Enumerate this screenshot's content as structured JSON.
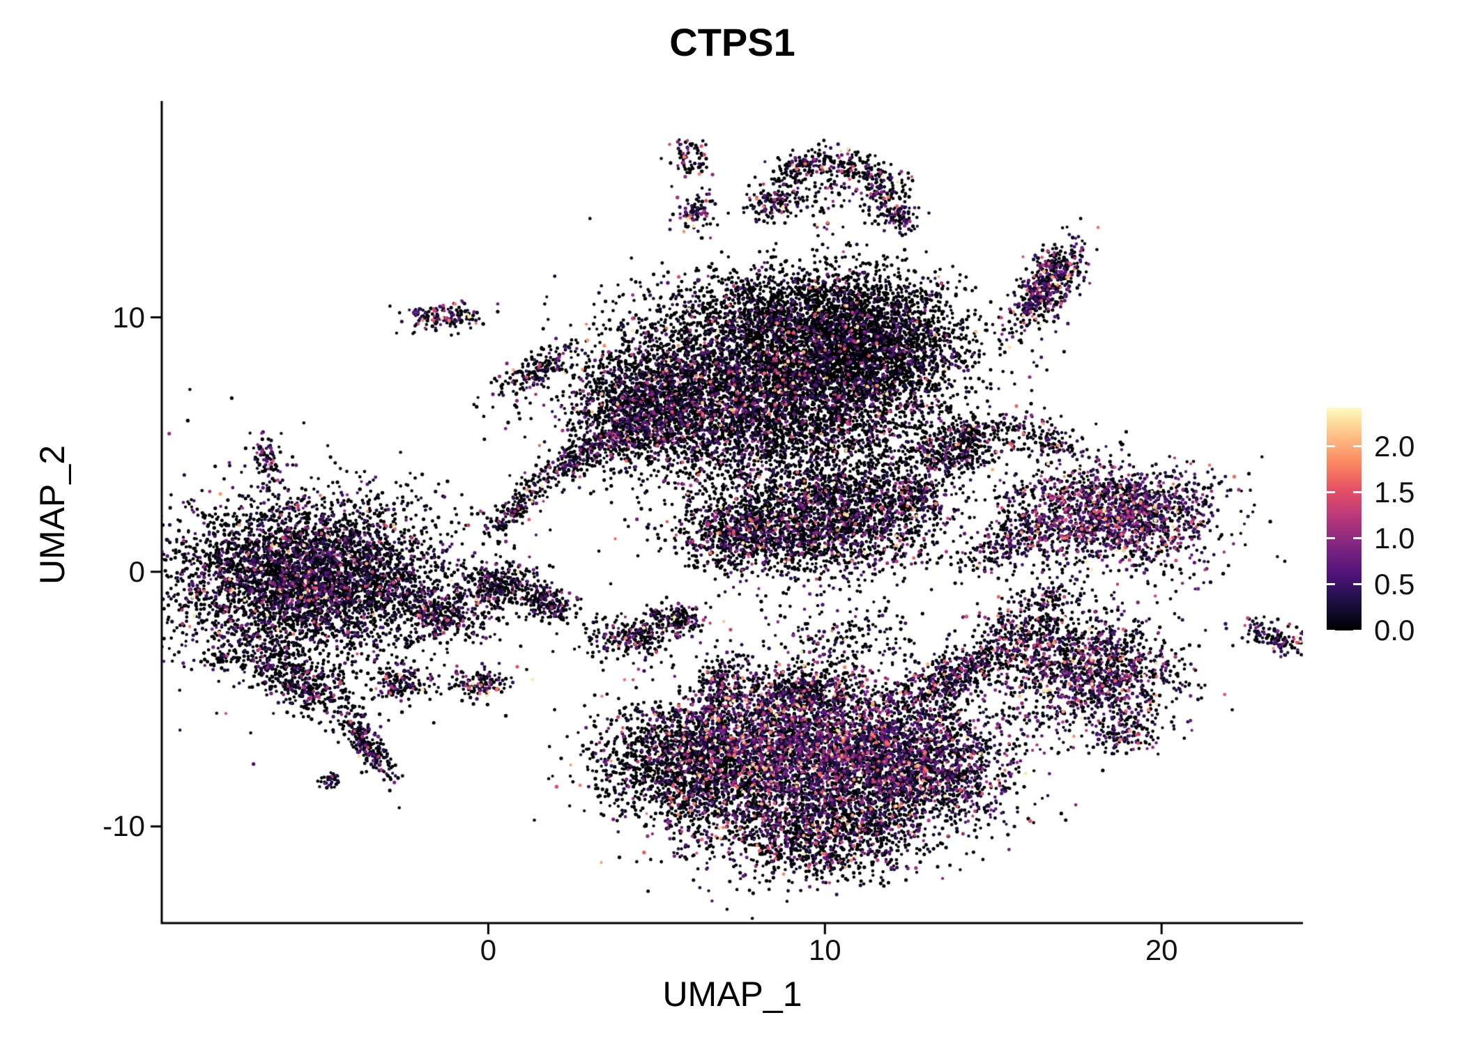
{
  "title": "CTPS1",
  "axes": {
    "x": {
      "label": "UMAP_1",
      "tick_labels": [
        "0",
        "10",
        "20"
      ],
      "tick_values": [
        0,
        10,
        20
      ]
    },
    "y": {
      "label": "UMAP_2",
      "tick_labels": [
        "-10",
        "0",
        "10"
      ],
      "tick_values": [
        -10,
        0,
        10
      ]
    }
  },
  "legend": {
    "tick_labels": [
      "2.0",
      "1.5",
      "1.0",
      "0.5",
      "0.0"
    ],
    "tick_values": [
      2.0,
      1.5,
      1.0,
      0.5,
      0.0
    ],
    "min_value": 0,
    "max_value": 2.42,
    "colormap": "magma"
  },
  "chart_data": {
    "type": "scatter",
    "title": "CTPS1",
    "xlabel": "UMAP_1",
    "ylabel": "UMAP_2",
    "xlim": [
      -9.7,
      24.2
    ],
    "ylim": [
      -13.8,
      18.5
    ],
    "x_ticks": [
      0,
      10,
      20
    ],
    "y_ticks": [
      -10,
      0,
      10
    ],
    "grid": false,
    "legend_position": "right",
    "color_scale": {
      "min": 0,
      "max": 2.42,
      "stops": [
        "#000004",
        "#1c1044",
        "#4f127b",
        "#812581",
        "#b5367a",
        "#e55064",
        "#fb8761",
        "#fec287",
        "#fcfdbf"
      ]
    },
    "cluster_fields": [
      "center_x",
      "center_y",
      "sd_x",
      "sd_y",
      "rot_deg",
      "n_points",
      "expressing_fraction",
      "expression_scale"
    ],
    "clusters": [
      [
        -5.3,
        -0.2,
        2.0,
        1.5,
        0,
        3800,
        0.28,
        0.45
      ],
      [
        -5.0,
        -0.5,
        2.8,
        2.1,
        0,
        900,
        0.2,
        0.4
      ],
      [
        -5.6,
        -4.3,
        1.1,
        0.45,
        -41,
        450,
        0.25,
        0.4
      ],
      [
        -3.6,
        -6.8,
        0.75,
        0.22,
        -62,
        220,
        0.3,
        0.4
      ],
      [
        -2.6,
        -4.35,
        0.45,
        0.3,
        0,
        140,
        0.35,
        0.5
      ],
      [
        -7.9,
        -3.4,
        0.18,
        0.14,
        0,
        30,
        0.25,
        0.4
      ],
      [
        -4.7,
        -8.2,
        0.2,
        0.15,
        0,
        35,
        0.3,
        0.4
      ],
      [
        -1.3,
        -1.7,
        0.7,
        0.45,
        -20,
        260,
        0.25,
        0.4
      ],
      [
        0.4,
        -0.55,
        0.6,
        0.45,
        0,
        300,
        0.25,
        0.4
      ],
      [
        1.8,
        -1.25,
        0.45,
        0.3,
        -30,
        170,
        0.3,
        0.4
      ],
      [
        -0.3,
        -4.35,
        0.5,
        0.3,
        10,
        120,
        0.4,
        0.6
      ],
      [
        -6.6,
        4.4,
        0.22,
        0.5,
        0,
        80,
        0.4,
        0.5
      ],
      [
        -1.3,
        10.05,
        0.6,
        0.3,
        5,
        150,
        0.45,
        0.6
      ],
      [
        1.5,
        7.9,
        0.75,
        0.28,
        38,
        170,
        0.3,
        0.5
      ],
      [
        8.2,
        7.6,
        2.4,
        1.7,
        0,
        4800,
        0.22,
        0.45
      ],
      [
        11.3,
        8.9,
        1.5,
        1.4,
        -10,
        2600,
        0.12,
        0.4
      ],
      [
        4.7,
        6.4,
        1.2,
        1.1,
        20,
        1300,
        0.28,
        0.45
      ],
      [
        7.8,
        4.6,
        1.9,
        1.1,
        0,
        650,
        0.22,
        0.45
      ],
      [
        9.0,
        10.6,
        1.8,
        0.7,
        0,
        700,
        0.12,
        0.4
      ],
      [
        2.8,
        4.6,
        1.4,
        0.3,
        40,
        330,
        0.28,
        0.45
      ],
      [
        0.7,
        2.3,
        0.5,
        0.2,
        55,
        120,
        0.25,
        0.45
      ],
      [
        13.8,
        4.8,
        0.65,
        0.5,
        0,
        300,
        0.3,
        0.5
      ],
      [
        14.4,
        5.5,
        0.4,
        0.25,
        30,
        90,
        0.3,
        0.5
      ],
      [
        9.8,
        1.9,
        1.8,
        1.0,
        0,
        2000,
        0.28,
        0.5
      ],
      [
        7.4,
        1.3,
        0.9,
        0.7,
        0,
        450,
        0.3,
        0.5
      ],
      [
        10.8,
        3.6,
        1.3,
        0.6,
        0,
        260,
        0.25,
        0.45
      ],
      [
        12.6,
        2.9,
        0.6,
        0.5,
        0,
        200,
        0.3,
        0.5
      ],
      [
        11.8,
        5.2,
        1.5,
        0.8,
        0,
        220,
        0.2,
        0.4
      ],
      [
        9.2,
        -7.0,
        2.0,
        1.4,
        0,
        3600,
        0.5,
        0.55
      ],
      [
        5.8,
        -7.6,
        1.3,
        1.2,
        0,
        1500,
        0.18,
        0.45
      ],
      [
        12.7,
        -7.6,
        1.5,
        1.2,
        0,
        1900,
        0.38,
        0.5
      ],
      [
        9.7,
        -10.3,
        1.7,
        0.9,
        0,
        1300,
        0.3,
        0.5
      ],
      [
        13.8,
        -4.1,
        1.2,
        0.45,
        35,
        480,
        0.35,
        0.5
      ],
      [
        9.3,
        -4.6,
        1.0,
        0.5,
        0,
        320,
        0.35,
        0.5
      ],
      [
        7.0,
        -4.6,
        0.4,
        0.7,
        0,
        200,
        0.35,
        0.6
      ],
      [
        4.1,
        -2.6,
        0.6,
        0.4,
        0,
        220,
        0.3,
        0.5
      ],
      [
        5.6,
        -1.9,
        0.5,
        0.35,
        0,
        170,
        0.3,
        0.5
      ],
      [
        10.8,
        -2.6,
        1.3,
        0.8,
        0,
        200,
        0.25,
        0.45
      ],
      [
        18.6,
        2.3,
        1.5,
        1.0,
        -5,
        1500,
        0.55,
        0.55
      ],
      [
        18.3,
        2.0,
        2.0,
        1.4,
        0,
        300,
        0.35,
        0.5
      ],
      [
        16.0,
        1.5,
        0.55,
        0.5,
        0,
        160,
        0.35,
        0.5
      ],
      [
        16.0,
        5.5,
        0.6,
        0.45,
        0,
        110,
        0.3,
        0.5
      ],
      [
        17.0,
        5.1,
        0.3,
        0.25,
        0,
        40,
        0.3,
        0.5
      ],
      [
        17.8,
        -3.9,
        1.4,
        1.1,
        0,
        1300,
        0.42,
        0.55
      ],
      [
        16.0,
        -2.3,
        0.7,
        0.6,
        30,
        250,
        0.35,
        0.5
      ],
      [
        18.9,
        -6.3,
        0.5,
        0.4,
        0,
        130,
        0.3,
        0.5
      ],
      [
        16.8,
        -0.9,
        0.6,
        0.4,
        0,
        90,
        0.3,
        0.5
      ],
      [
        16.6,
        11.3,
        1.0,
        0.4,
        66,
        520,
        0.45,
        0.55
      ],
      [
        8.6,
        14.5,
        0.5,
        0.35,
        20,
        140,
        0.3,
        0.5
      ],
      [
        9.4,
        15.9,
        0.6,
        0.3,
        30,
        130,
        0.3,
        0.5
      ],
      [
        10.7,
        15.9,
        0.7,
        0.3,
        -15,
        140,
        0.3,
        0.5
      ],
      [
        11.8,
        14.9,
        0.35,
        0.5,
        0,
        110,
        0.35,
        0.5
      ],
      [
        12.2,
        13.9,
        0.3,
        0.3,
        0,
        80,
        0.35,
        0.5
      ],
      [
        10.2,
        14.9,
        0.8,
        0.5,
        0,
        60,
        0.3,
        0.5
      ],
      [
        9.9,
        13.6,
        0.12,
        0.12,
        0,
        6,
        0.9,
        0.9
      ],
      [
        6.0,
        16.3,
        0.28,
        0.35,
        0,
        70,
        0.35,
        0.5
      ],
      [
        6.15,
        14.2,
        0.3,
        0.45,
        0,
        90,
        0.45,
        0.6
      ],
      [
        23.4,
        -2.6,
        0.55,
        0.28,
        -25,
        140,
        0.4,
        0.5
      ],
      [
        14.9,
        0.6,
        0.5,
        0.35,
        0,
        70,
        0.3,
        0.5
      ]
    ]
  }
}
